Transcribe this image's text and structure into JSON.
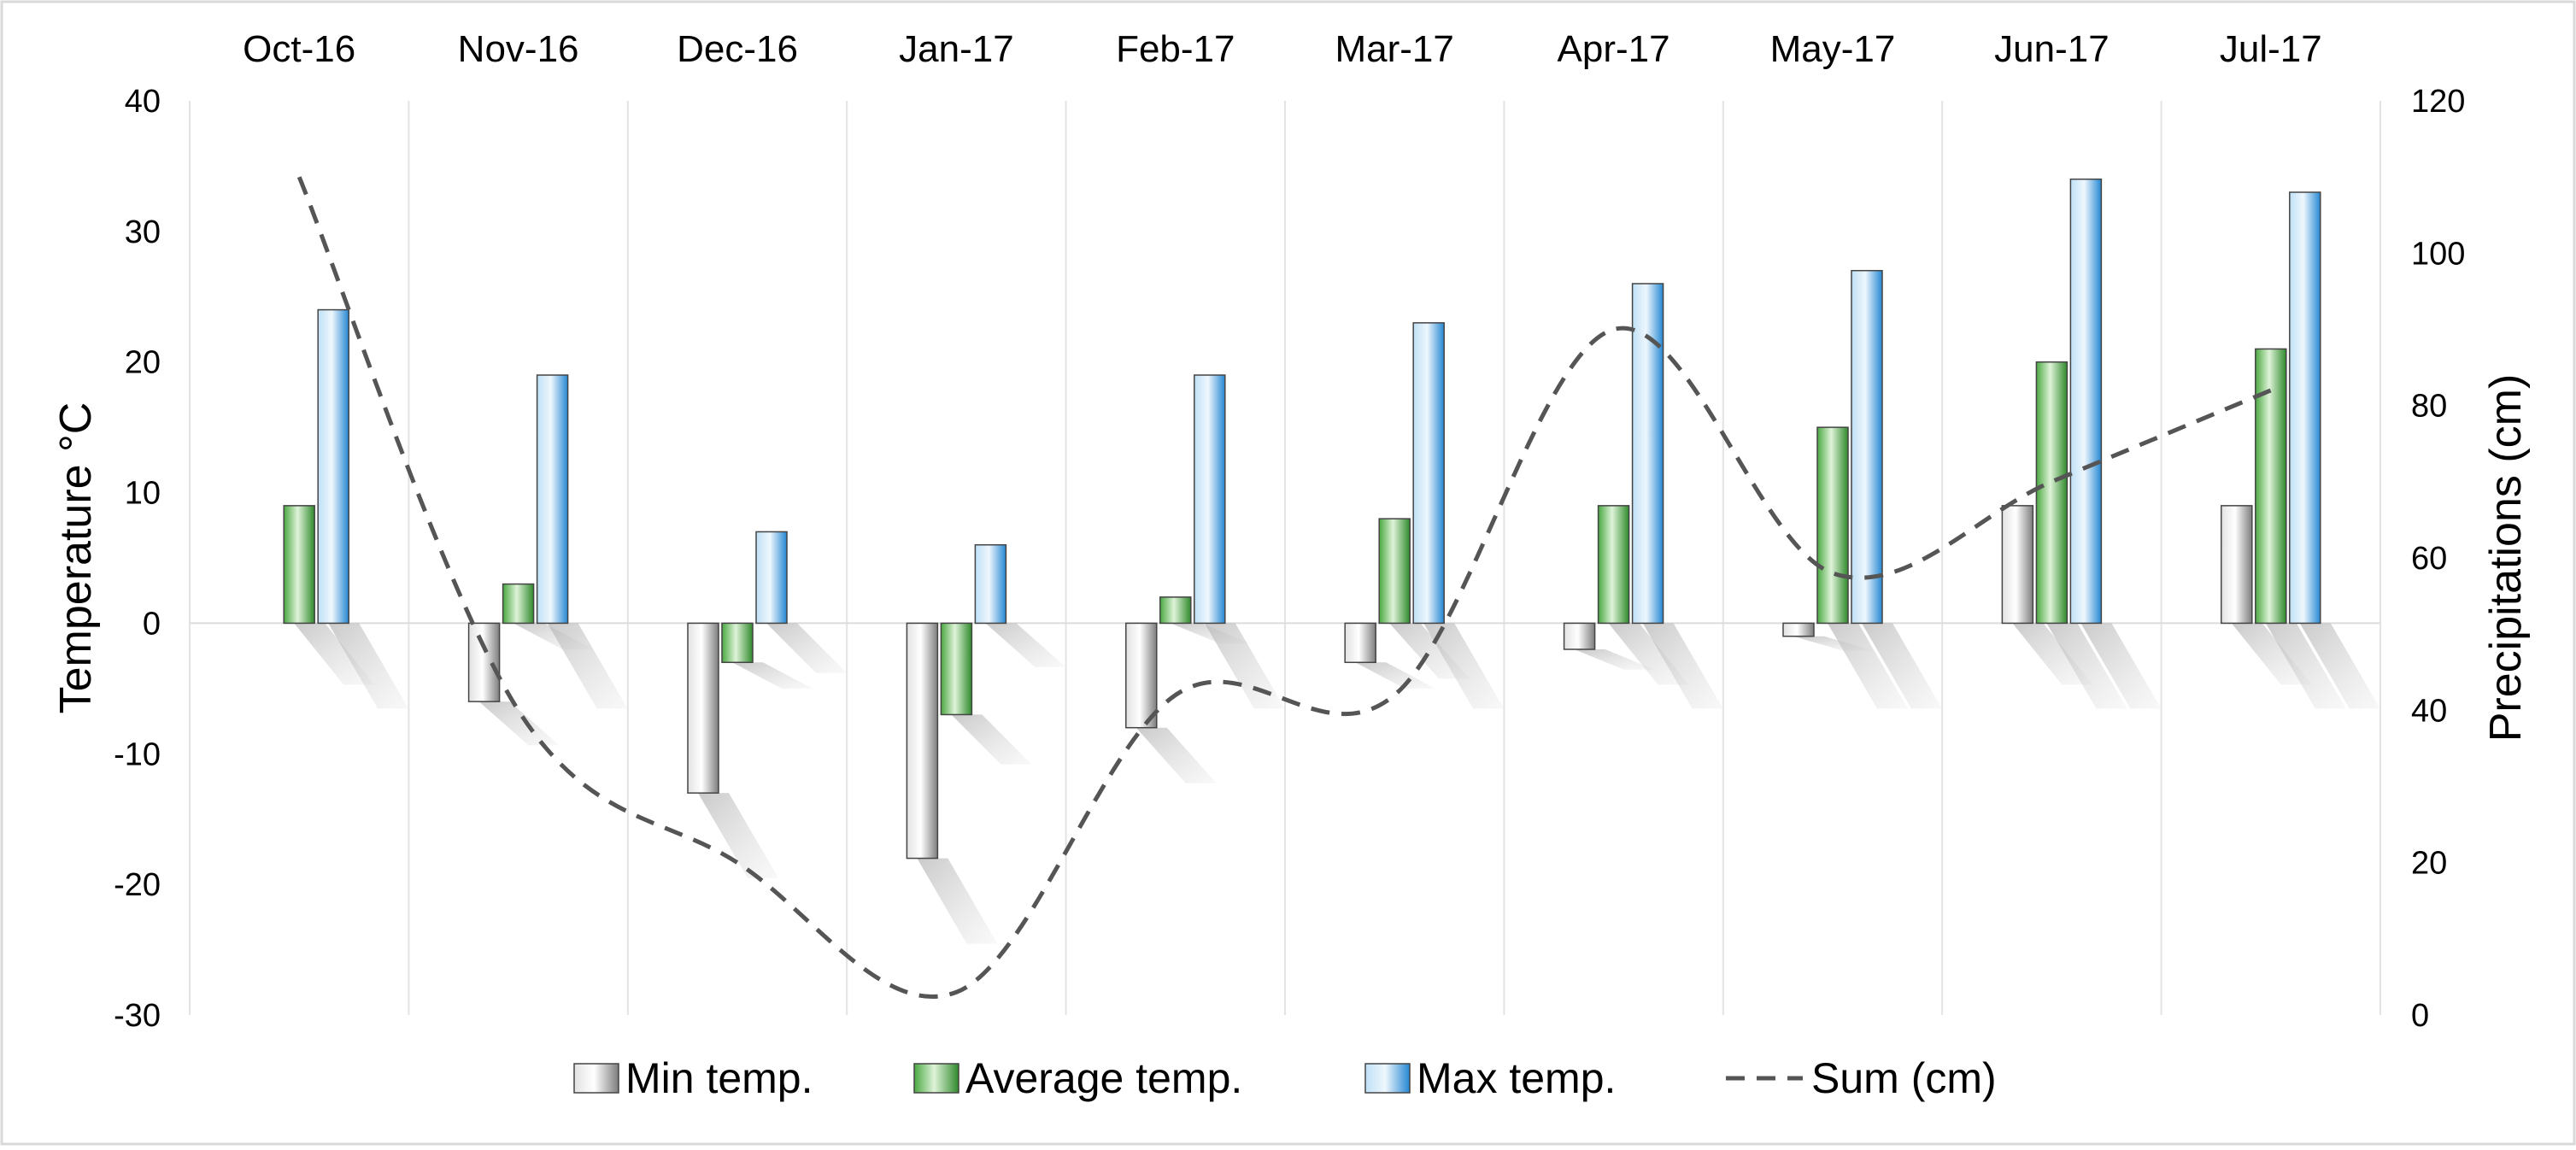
{
  "chart_data": {
    "type": "bar",
    "categories": [
      "Oct-16",
      "Nov-16",
      "Dec-16",
      "Jan-17",
      "Feb-17",
      "Mar-17",
      "Apr-17",
      "May-17",
      "Jun-17",
      "Jul-17"
    ],
    "series": [
      {
        "name": "Min temp.",
        "axis": "left",
        "kind": "bar",
        "color": "#9a9a9a",
        "values": [
          0,
          -6,
          -13,
          -18,
          -8,
          -3,
          -2,
          -1,
          9,
          9
        ]
      },
      {
        "name": "Average temp.",
        "axis": "left",
        "kind": "bar",
        "color": "#3fa33a",
        "values": [
          9,
          3,
          -3,
          -7,
          2,
          8,
          9,
          15,
          20,
          21
        ]
      },
      {
        "name": "Max temp.",
        "axis": "left",
        "kind": "bar",
        "color": "#2f8fd6",
        "values": [
          24,
          19,
          7,
          6,
          19,
          23,
          26,
          27,
          34,
          33
        ]
      },
      {
        "name": "Sum (cm)",
        "axis": "right",
        "kind": "line",
        "style": "dashed",
        "color": "#555555",
        "values": [
          110,
          40,
          20,
          3,
          42,
          42,
          90,
          58,
          70,
          82
        ]
      }
    ],
    "title": "",
    "ylabel": "Temperature °C",
    "y2label": "Precipitations (cm)",
    "ylim": [
      -30,
      40
    ],
    "y2lim": [
      0,
      120
    ],
    "yticks": [
      "40",
      "30",
      "20",
      "10",
      "0",
      "-10",
      "-20",
      "-30"
    ],
    "y2ticks": [
      "120",
      "100",
      "80",
      "60",
      "40",
      "20",
      "0"
    ],
    "legend_position": "bottom",
    "grid": "vertical category separators"
  }
}
